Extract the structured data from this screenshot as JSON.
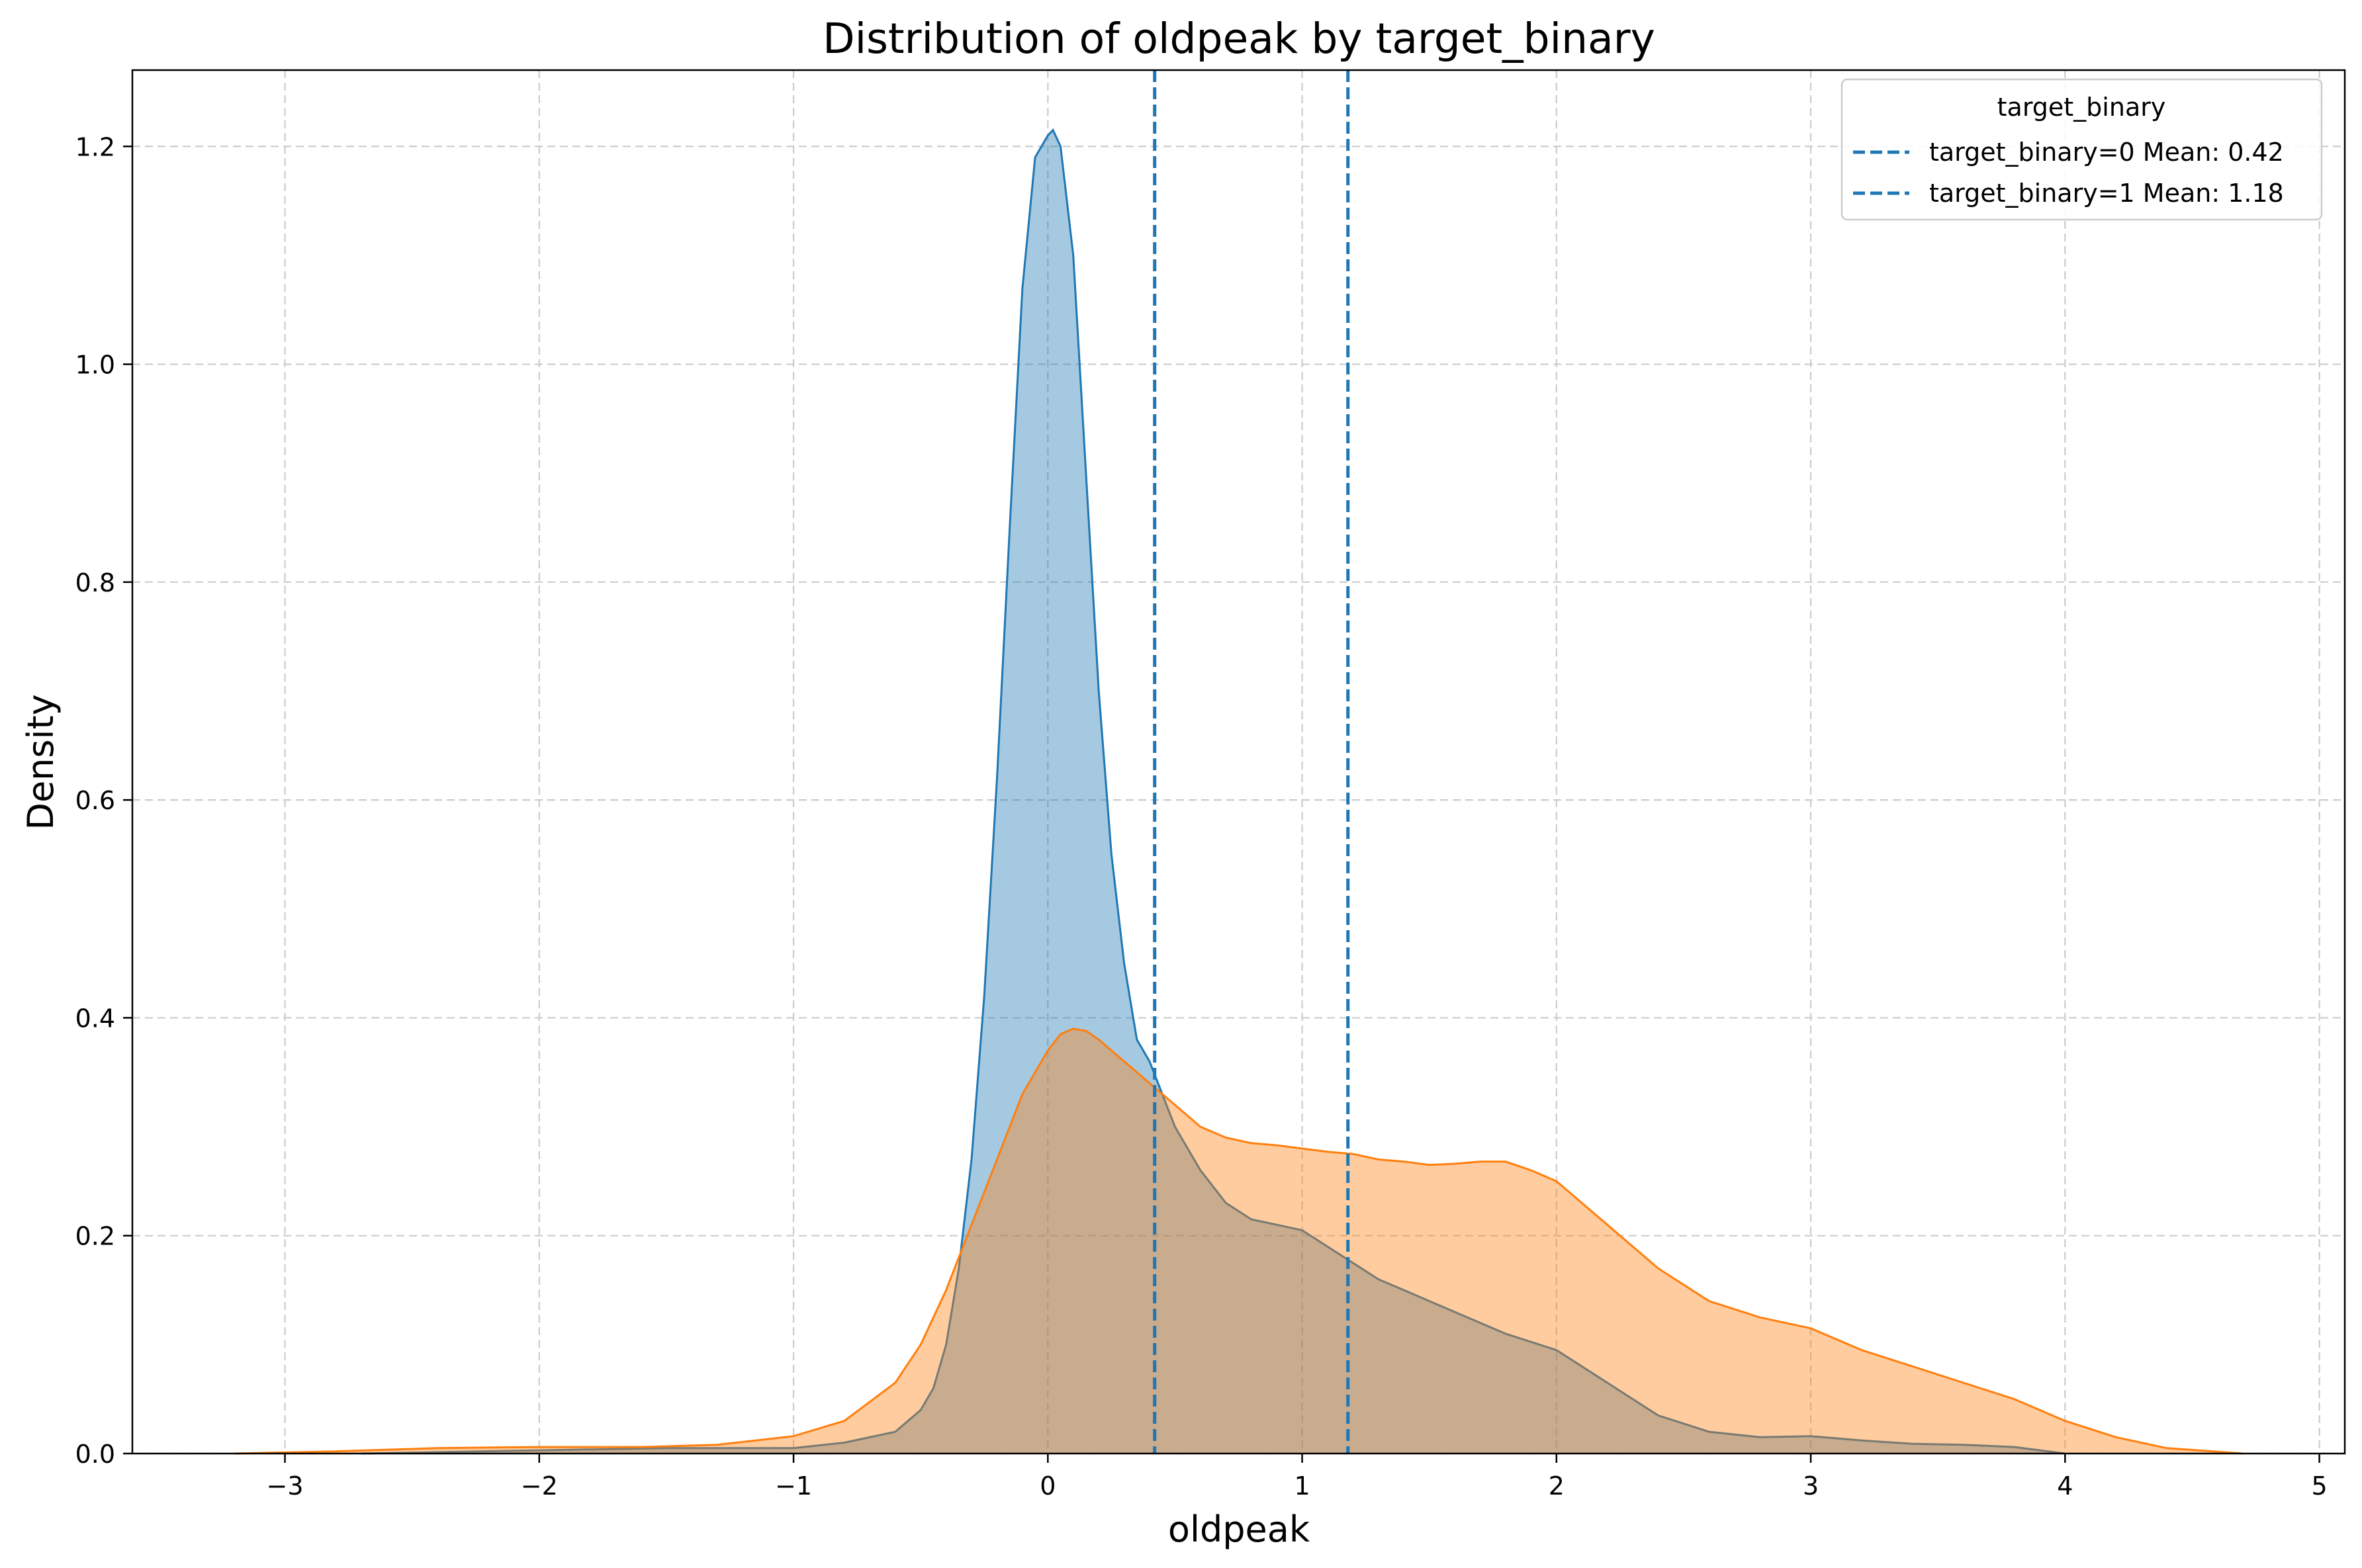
{
  "chart_data": {
    "type": "area",
    "title": "Distribution of oldpeak by target_binary",
    "xlabel": "oldpeak",
    "ylabel": "Density",
    "xlim": [
      -3.6,
      5.1
    ],
    "ylim": [
      0,
      1.27
    ],
    "xticks": [
      -3,
      -2,
      -1,
      0,
      1,
      2,
      3,
      4,
      5
    ],
    "xtick_labels": [
      "−3",
      "−2",
      "−1",
      "0",
      "1",
      "2",
      "3",
      "4",
      "5"
    ],
    "yticks": [
      0.0,
      0.2,
      0.4,
      0.6,
      0.8,
      1.0,
      1.2
    ],
    "ytick_labels": [
      "0.0",
      "0.2",
      "0.4",
      "0.6",
      "0.8",
      "1.0",
      "1.2"
    ],
    "grid": true,
    "legend": {
      "title": "target_binary",
      "position": "top-right",
      "entries": [
        "target_binary=0 Mean: 0.42",
        "target_binary=1 Mean: 1.18"
      ]
    },
    "series": [
      {
        "color": "#1f77b4",
        "x": [
          -2.7,
          -2.0,
          -1.5,
          -1.0,
          -0.8,
          -0.6,
          -0.5,
          -0.45,
          -0.4,
          -0.35,
          -0.3,
          -0.25,
          -0.2,
          -0.15,
          -0.1,
          -0.05,
          0.0,
          0.02,
          0.05,
          0.1,
          0.15,
          0.2,
          0.25,
          0.3,
          0.35,
          0.4,
          0.45,
          0.5,
          0.6,
          0.7,
          0.8,
          0.9,
          1.0,
          1.1,
          1.2,
          1.3,
          1.4,
          1.6,
          1.8,
          2.0,
          2.2,
          2.4,
          2.6,
          2.8,
          3.0,
          3.2,
          3.4,
          3.6,
          3.8,
          4.0
        ],
        "y": [
          0.0,
          0.003,
          0.005,
          0.005,
          0.01,
          0.02,
          0.04,
          0.06,
          0.1,
          0.17,
          0.27,
          0.42,
          0.62,
          0.85,
          1.07,
          1.19,
          1.21,
          1.215,
          1.2,
          1.1,
          0.9,
          0.7,
          0.55,
          0.45,
          0.38,
          0.36,
          0.33,
          0.3,
          0.26,
          0.23,
          0.215,
          0.21,
          0.205,
          0.19,
          0.175,
          0.16,
          0.15,
          0.13,
          0.11,
          0.095,
          0.065,
          0.035,
          0.02,
          0.015,
          0.016,
          0.012,
          0.009,
          0.008,
          0.006,
          0.0
        ]
      },
      {
        "color": "#ff7f0e",
        "x": [
          -3.2,
          -2.8,
          -2.4,
          -2.0,
          -1.6,
          -1.3,
          -1.0,
          -0.8,
          -0.6,
          -0.5,
          -0.4,
          -0.3,
          -0.2,
          -0.1,
          0.0,
          0.05,
          0.1,
          0.15,
          0.2,
          0.3,
          0.4,
          0.5,
          0.6,
          0.7,
          0.8,
          0.9,
          1.0,
          1.1,
          1.2,
          1.3,
          1.4,
          1.5,
          1.6,
          1.7,
          1.8,
          1.9,
          2.0,
          2.2,
          2.4,
          2.6,
          2.8,
          3.0,
          3.2,
          3.4,
          3.6,
          3.8,
          4.0,
          4.2,
          4.4,
          4.7
        ],
        "y": [
          0.0,
          0.002,
          0.005,
          0.006,
          0.006,
          0.008,
          0.016,
          0.03,
          0.065,
          0.1,
          0.15,
          0.21,
          0.27,
          0.33,
          0.37,
          0.385,
          0.39,
          0.388,
          0.38,
          0.36,
          0.34,
          0.32,
          0.3,
          0.29,
          0.285,
          0.283,
          0.28,
          0.277,
          0.275,
          0.27,
          0.268,
          0.265,
          0.266,
          0.268,
          0.268,
          0.26,
          0.25,
          0.21,
          0.17,
          0.14,
          0.125,
          0.115,
          0.095,
          0.08,
          0.065,
          0.05,
          0.03,
          0.015,
          0.005,
          0.0
        ]
      }
    ],
    "mean_lines": [
      {
        "x": 0.42,
        "color": "#1f77b4",
        "style": "dashed"
      },
      {
        "x": 1.18,
        "color": "#1f77b4",
        "style": "dashed"
      }
    ]
  }
}
